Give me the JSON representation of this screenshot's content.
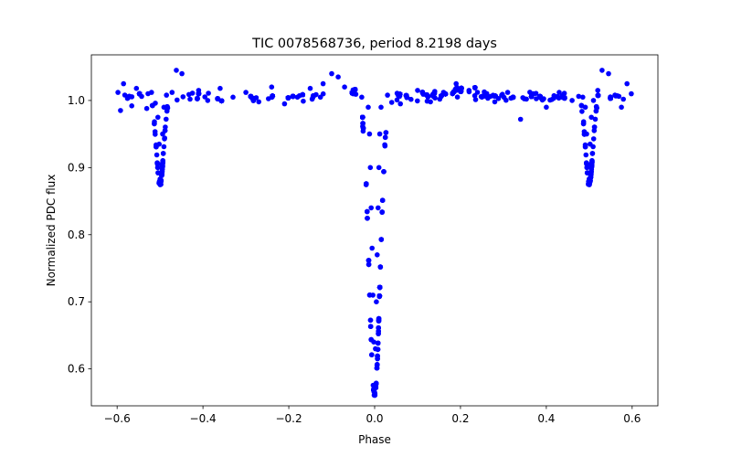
{
  "chart_data": {
    "type": "scatter",
    "title": "TIC 0078568736, period 8.2198 days",
    "xlabel": "Phase",
    "ylabel": "Normalized PDC flux",
    "xlim": [
      -0.66,
      0.66
    ],
    "ylim": [
      0.545,
      1.068
    ],
    "x_ticks": [
      -0.6,
      -0.4,
      -0.2,
      0.0,
      0.2,
      0.4,
      0.6
    ],
    "x_tick_labels": [
      "−0.6",
      "−0.4",
      "−0.2",
      "0.0",
      "0.2",
      "0.4",
      "0.6"
    ],
    "y_ticks": [
      0.6,
      0.7,
      0.8,
      0.9,
      1.0
    ],
    "y_tick_labels": [
      "0.6",
      "0.7",
      "0.8",
      "0.9",
      "1.0"
    ],
    "grid": false,
    "marker_color": "#0000ff",
    "series": [
      {
        "name": "PDC flux",
        "baseline": 1.005,
        "scatter": 0.012,
        "eclipses": [
          {
            "name": "secondary-eclipse-left",
            "center": -0.5,
            "depth": 0.13,
            "half_width": 0.012
          },
          {
            "name": "primary-eclipse",
            "center": 0.0,
            "depth": 0.445,
            "half_width": 0.018
          },
          {
            "name": "secondary-eclipse-right",
            "center": 0.5,
            "depth": 0.13,
            "half_width": 0.012
          }
        ],
        "points": [
          [
            -0.598,
            1.012
          ],
          [
            -0.592,
            0.985
          ],
          [
            -0.585,
            1.025
          ],
          [
            -0.576,
            1.003
          ],
          [
            -0.566,
            0.992
          ],
          [
            -0.555,
            1.018
          ],
          [
            -0.543,
            1.006
          ],
          [
            -0.531,
            0.988
          ],
          [
            -0.52,
            1.012
          ],
          [
            -0.511,
            0.996
          ],
          [
            -0.505,
            0.975
          ],
          [
            -0.502,
            0.935
          ],
          [
            -0.5,
            0.883
          ],
          [
            -0.498,
            0.875
          ],
          [
            -0.496,
            0.905
          ],
          [
            -0.494,
            0.95
          ],
          [
            -0.491,
            0.99
          ],
          [
            -0.485,
            1.008
          ],
          [
            -0.472,
            1.012
          ],
          [
            -0.462,
            1.045
          ],
          [
            -0.449,
            1.04
          ],
          [
            -0.43,
            1.002
          ],
          [
            -0.41,
            1.015
          ],
          [
            -0.389,
            1.0
          ],
          [
            -0.36,
            1.018
          ],
          [
            -0.33,
            1.005
          ],
          [
            -0.3,
            1.012
          ],
          [
            -0.27,
            0.998
          ],
          [
            -0.24,
            1.02
          ],
          [
            -0.21,
            0.995
          ],
          [
            -0.18,
            1.005
          ],
          [
            -0.15,
            1.018
          ],
          [
            -0.12,
            1.025
          ],
          [
            -0.1,
            1.04
          ],
          [
            -0.085,
            1.035
          ],
          [
            -0.07,
            1.02
          ],
          [
            -0.05,
            1.01
          ],
          [
            -0.03,
            1.005
          ],
          [
            -0.015,
            0.99
          ],
          [
            -0.012,
            0.95
          ],
          [
            -0.01,
            0.9
          ],
          [
            -0.008,
            0.84
          ],
          [
            -0.006,
            0.78
          ],
          [
            -0.004,
            0.71
          ],
          [
            -0.002,
            0.64
          ],
          [
            0.0,
            0.565
          ],
          [
            0.002,
            0.63
          ],
          [
            0.004,
            0.7
          ],
          [
            0.006,
            0.77
          ],
          [
            0.008,
            0.84
          ],
          [
            0.01,
            0.9
          ],
          [
            0.012,
            0.95
          ],
          [
            0.015,
            0.99
          ],
          [
            0.03,
            1.008
          ],
          [
            0.06,
            0.995
          ],
          [
            0.1,
            1.015
          ],
          [
            0.13,
            0.998
          ],
          [
            0.16,
            1.01
          ],
          [
            0.19,
            1.025
          ],
          [
            0.22,
            1.015
          ],
          [
            0.25,
            1.005
          ],
          [
            0.28,
            0.998
          ],
          [
            0.31,
            1.012
          ],
          [
            0.34,
            0.972
          ],
          [
            0.37,
            1.01
          ],
          [
            0.4,
            0.99
          ],
          [
            0.43,
            1.012
          ],
          [
            0.46,
            1.0
          ],
          [
            0.485,
            1.005
          ],
          [
            0.491,
            0.99
          ],
          [
            0.494,
            0.95
          ],
          [
            0.496,
            0.905
          ],
          [
            0.498,
            0.875
          ],
          [
            0.5,
            0.883
          ],
          [
            0.502,
            0.935
          ],
          [
            0.505,
            0.975
          ],
          [
            0.51,
            1.0
          ],
          [
            0.52,
            1.015
          ],
          [
            0.53,
            1.045
          ],
          [
            0.545,
            1.04
          ],
          [
            0.56,
            1.008
          ],
          [
            0.575,
            0.99
          ],
          [
            0.588,
            1.025
          ],
          [
            0.598,
            1.01
          ]
        ]
      }
    ]
  }
}
